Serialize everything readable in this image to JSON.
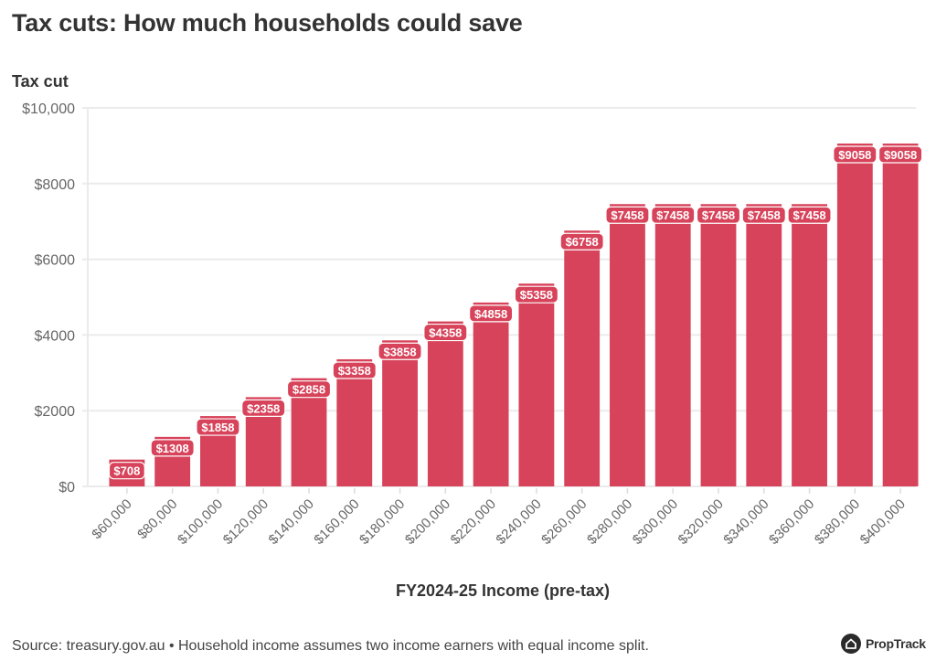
{
  "header": {
    "title": "Tax cuts: How much households could save"
  },
  "footer": {
    "source": "Source: treasury.gov.au • Household income assumes two income earners with equal income split.",
    "brand": "PropTrack",
    "brand_icon": "house-icon"
  },
  "colors": {
    "bar": "#d7435a",
    "label_bg": "#d7435a",
    "label_text": "#ffffff",
    "grid": "#ebebeb",
    "axis_text": "#666666",
    "title_text": "#333333"
  },
  "chart_data": {
    "type": "bar",
    "title": "Tax cuts: How much households could save",
    "ylabel": "Tax cut",
    "xlabel": "FY2024-25 Income (pre-tax)",
    "ylim": [
      0,
      10000
    ],
    "yticks": [
      0,
      2000,
      4000,
      6000,
      8000,
      10000
    ],
    "ytick_labels": [
      "$0",
      "$2000",
      "$4000",
      "$6000",
      "$8000",
      "$10,000"
    ],
    "grid": true,
    "legend": "none",
    "categories": [
      "$60,000",
      "$80,000",
      "$100,000",
      "$120,000",
      "$140,000",
      "$160,000",
      "$180,000",
      "$200,000",
      "$220,000",
      "$240,000",
      "$260,000",
      "$280,000",
      "$300,000",
      "$320,000",
      "$340,000",
      "$360,000",
      "$380,000",
      "$400,000"
    ],
    "values": [
      708,
      1308,
      1858,
      2358,
      2858,
      3358,
      3858,
      4358,
      4858,
      5358,
      6758,
      7458,
      7458,
      7458,
      7458,
      7458,
      9058,
      9058
    ],
    "data_labels": [
      "$708",
      "$1308",
      "$1858",
      "$2358",
      "$2858",
      "$3358",
      "$3858",
      "$4358",
      "$4858",
      "$5358",
      "$6758",
      "$7458",
      "$7458",
      "$7458",
      "$7458",
      "$7458",
      "$9058",
      "$9058"
    ]
  }
}
